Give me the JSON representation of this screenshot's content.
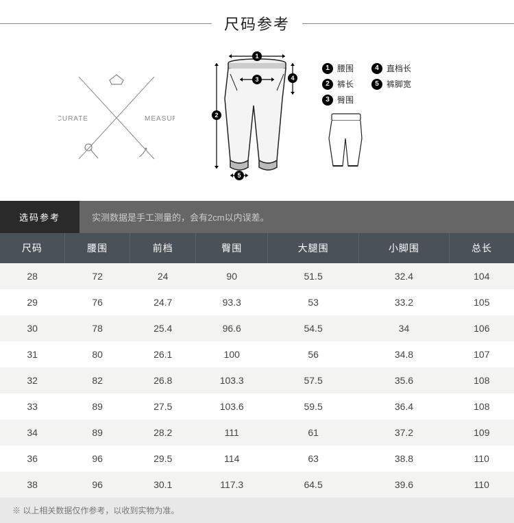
{
  "title": "尺码参考",
  "logo": {
    "text_left": "ACCURATE",
    "text_right": "MEASURING",
    "color": "#888888"
  },
  "legend": {
    "items": [
      {
        "num": "1",
        "label": "腰围"
      },
      {
        "num": "4",
        "label": "直档长"
      },
      {
        "num": "2",
        "label": "裤长"
      },
      {
        "num": "5",
        "label": "裤脚宽"
      },
      {
        "num": "3",
        "label": "臀围"
      }
    ]
  },
  "note_bar": {
    "label": "选码参考",
    "text": "实测数据是手工测量的，会有2cm以内误差。"
  },
  "table": {
    "header_bg": "#4a5158",
    "header_border": "#5b626a",
    "row_odd_bg": "#f3f3f2",
    "row_even_bg": "#ffffff",
    "columns": [
      "尺码",
      "腰围",
      "前档",
      "臀围",
      "大腿围",
      "小脚围",
      "总长"
    ],
    "rows": [
      [
        "28",
        "72",
        "24",
        "90",
        "51.5",
        "32.4",
        "104"
      ],
      [
        "29",
        "76",
        "24.7",
        "93.3",
        "53",
        "33.2",
        "105"
      ],
      [
        "30",
        "78",
        "25.4",
        "96.6",
        "54.5",
        "34",
        "106"
      ],
      [
        "31",
        "80",
        "26.1",
        "100",
        "56",
        "34.8",
        "107"
      ],
      [
        "32",
        "82",
        "26.8",
        "103.3",
        "57.5",
        "35.6",
        "108"
      ],
      [
        "33",
        "89",
        "27.5",
        "103.6",
        "59.5",
        "36.4",
        "108"
      ],
      [
        "34",
        "89",
        "28.2",
        "111",
        "61",
        "37.2",
        "109"
      ],
      [
        "36",
        "96",
        "29.5",
        "114",
        "63",
        "38.8",
        "110"
      ],
      [
        "38",
        "96",
        "30.1",
        "117.3",
        "64.5",
        "39.6",
        "110"
      ]
    ]
  },
  "footer": "※ 以上相关数据仅作参考，以收到实物为准。",
  "colors": {
    "title_line": "#888888",
    "note_dark": "#2a2a2a",
    "note_bg": "#666666",
    "footer_bg": "#e8e8e8"
  }
}
